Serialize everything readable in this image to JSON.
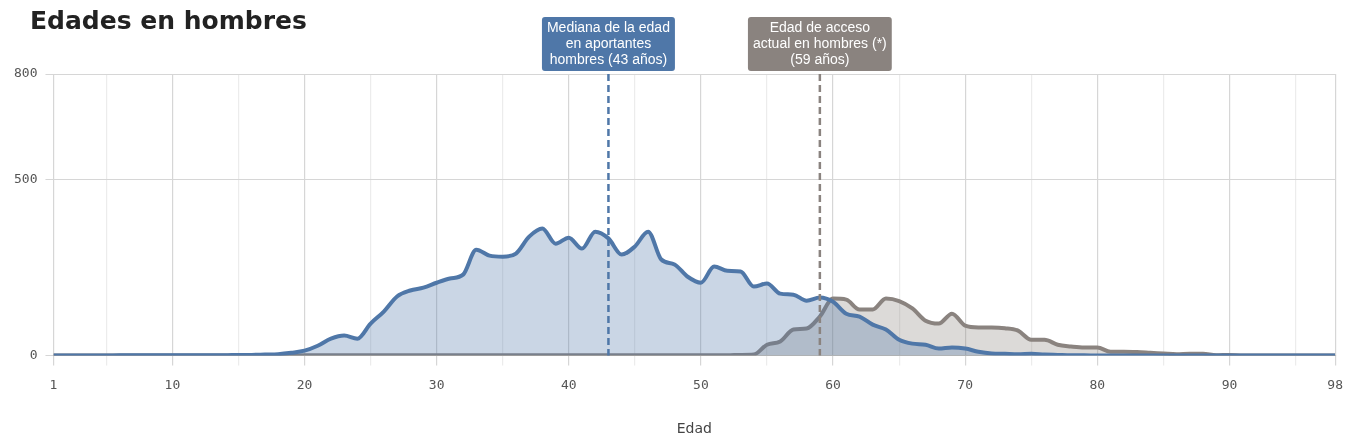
{
  "chart_data": {
    "type": "area",
    "title": "Edades en hombres",
    "xlabel": "Edad",
    "x": [
      1,
      2,
      3,
      4,
      5,
      6,
      7,
      8,
      9,
      10,
      11,
      12,
      13,
      14,
      15,
      16,
      17,
      18,
      19,
      20,
      21,
      22,
      23,
      24,
      25,
      26,
      27,
      28,
      29,
      30,
      31,
      32,
      33,
      34,
      35,
      36,
      37,
      38,
      39,
      40,
      41,
      42,
      43,
      44,
      45,
      46,
      47,
      48,
      49,
      50,
      51,
      52,
      53,
      54,
      55,
      56,
      57,
      58,
      59,
      60,
      61,
      62,
      63,
      64,
      65,
      66,
      67,
      68,
      69,
      70,
      71,
      72,
      73,
      74,
      75,
      76,
      77,
      78,
      79,
      80,
      81,
      82,
      83,
      84,
      85,
      86,
      87,
      88,
      89,
      90,
      91,
      92,
      93,
      94,
      95,
      96,
      97,
      98
    ],
    "series": [
      {
        "color": "#4f77a8",
        "values": [
          0,
          0,
          0,
          0,
          0,
          1,
          1,
          1,
          1,
          1,
          1,
          1,
          1,
          1,
          2,
          2,
          3,
          4,
          8,
          14,
          28,
          48,
          57,
          48,
          91,
          125,
          168,
          185,
          193,
          207,
          219,
          230,
          301,
          284,
          281,
          290,
          338,
          361,
          318,
          335,
          304,
          352,
          333,
          287,
          310,
          352,
          273,
          259,
          224,
          207,
          253,
          241,
          239,
          196,
          205,
          176,
          173,
          156,
          165,
          153,
          119,
          111,
          88,
          74,
          45,
          34,
          31,
          20,
          23,
          20,
          11,
          6,
          5,
          4,
          5,
          3,
          2,
          1,
          1,
          0,
          0,
          0,
          0,
          0,
          0,
          0,
          0,
          0,
          0,
          0,
          0,
          0,
          0,
          0,
          0,
          0,
          0,
          0
        ]
      },
      {
        "color": "#8a837f",
        "values": [
          0,
          0,
          0,
          0,
          0,
          0,
          0,
          0,
          0,
          0,
          0,
          0,
          0,
          0,
          0,
          0,
          0,
          0,
          0,
          1,
          1,
          1,
          1,
          1,
          1,
          1,
          1,
          1,
          1,
          1,
          1,
          1,
          1,
          1,
          1,
          1,
          1,
          1,
          1,
          1,
          1,
          1,
          1,
          1,
          1,
          1,
          1,
          1,
          1,
          1,
          1,
          1,
          2,
          3,
          31,
          40,
          74,
          77,
          111,
          162,
          159,
          131,
          131,
          162,
          155,
          134,
          99,
          91,
          119,
          85,
          80,
          80,
          78,
          71,
          45,
          45,
          31,
          26,
          23,
          23,
          11,
          11,
          10,
          8,
          6,
          4,
          5,
          5,
          1,
          2,
          0,
          0,
          0,
          0,
          0,
          0,
          0,
          0
        ]
      }
    ],
    "xlim": [
      1,
      98
    ],
    "xticks": [
      1,
      {
        "value": 5,
        "label": null
      },
      10,
      {
        "value": 15,
        "label": null
      },
      20,
      {
        "value": 25,
        "label": null
      },
      30,
      {
        "value": 35,
        "label": null
      },
      40,
      {
        "value": 45,
        "label": null
      },
      50,
      {
        "value": 55,
        "label": null
      },
      60,
      {
        "value": 65,
        "label": null
      },
      70,
      {
        "value": 75,
        "label": null
      },
      80,
      {
        "value": 85,
        "label": null
      },
      90,
      {
        "value": 95,
        "label": null
      },
      98
    ],
    "ylim": [
      0,
      800
    ],
    "yticks": [
      0,
      500,
      800
    ],
    "grid": true,
    "legend": false,
    "marker": "none",
    "ref_lines": [
      {
        "axis": "x",
        "value": 43,
        "label": "Mediana de la edad en aportantes hombres (43 años)",
        "color": "#4f77a8",
        "line_style": "dashed"
      },
      {
        "axis": "x",
        "value": 59,
        "label": "Edad de acceso actual en hombres (*) (59 años)",
        "color": "#8a837f",
        "line_style": "dashed"
      }
    ]
  }
}
